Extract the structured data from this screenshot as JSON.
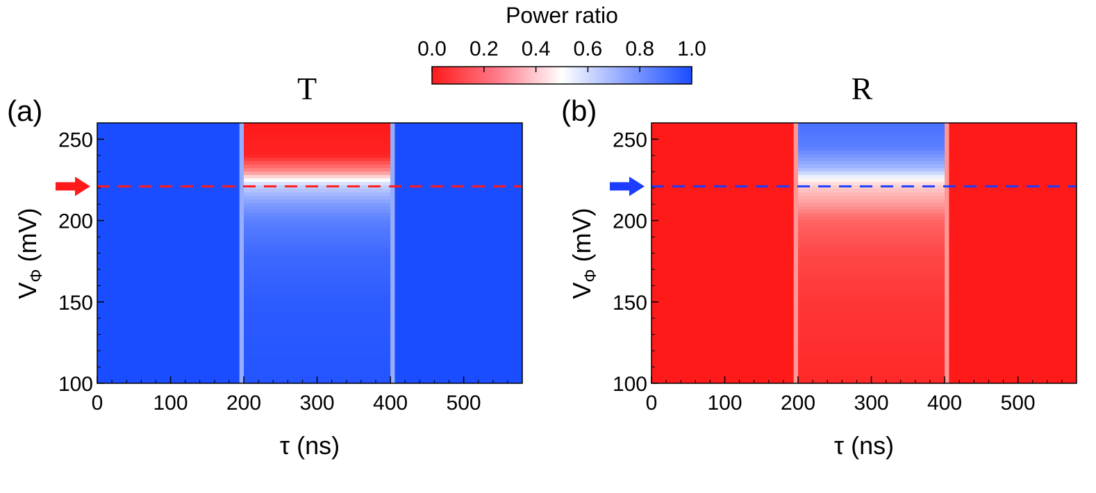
{
  "colorbar": {
    "title": "Power ratio",
    "ticks": [
      "0.0",
      "0.2",
      "0.4",
      "0.6",
      "0.8",
      "1.0"
    ],
    "range": [
      0.0,
      1.0
    ],
    "colors": {
      "low": "#ff1a1a",
      "mid": "#ffffff",
      "high": "#1a4dff"
    }
  },
  "chart_data": [
    {
      "type": "heatmap",
      "panel_label": "(a)",
      "title": "T",
      "xlabel": "τ (ns)",
      "ylabel_main": "V",
      "ylabel_sub": "Φ",
      "ylabel_unit": " (mV)",
      "x_ticks": [
        "0",
        "100",
        "200",
        "300",
        "400",
        "500"
      ],
      "y_ticks": [
        "100",
        "150",
        "200",
        "250"
      ],
      "xlim": [
        0,
        580
      ],
      "ylim": [
        100,
        260
      ],
      "background_ratio": 1.0,
      "pulse_window_ns": [
        200,
        400
      ],
      "marker_v_mv": 221,
      "marker_color": "#ff1a1a",
      "profile_ratio_by_v": [
        [
          260,
          0.0
        ],
        [
          240,
          0.02
        ],
        [
          230,
          0.25
        ],
        [
          224,
          0.55
        ],
        [
          220,
          0.65
        ],
        [
          210,
          0.78
        ],
        [
          200,
          0.86
        ],
        [
          180,
          0.92
        ],
        [
          150,
          0.96
        ],
        [
          100,
          0.98
        ]
      ]
    },
    {
      "type": "heatmap",
      "panel_label": "(b)",
      "title": "R",
      "xlabel": "τ (ns)",
      "ylabel_main": "V",
      "ylabel_sub": "Φ",
      "ylabel_unit": " (mV)",
      "x_ticks": [
        "0",
        "100",
        "200",
        "300",
        "400",
        "500"
      ],
      "y_ticks": [
        "100",
        "150",
        "200",
        "250"
      ],
      "xlim": [
        0,
        580
      ],
      "ylim": [
        100,
        260
      ],
      "background_ratio": 0.0,
      "pulse_window_ns": [
        200,
        400
      ],
      "marker_v_mv": 221,
      "marker_color": "#1a3dff",
      "profile_ratio_by_v": [
        [
          260,
          0.9
        ],
        [
          245,
          0.86
        ],
        [
          232,
          0.7
        ],
        [
          224,
          0.45
        ],
        [
          220,
          0.38
        ],
        [
          210,
          0.28
        ],
        [
          200,
          0.16
        ],
        [
          180,
          0.1
        ],
        [
          150,
          0.06
        ],
        [
          100,
          0.03
        ]
      ]
    }
  ]
}
